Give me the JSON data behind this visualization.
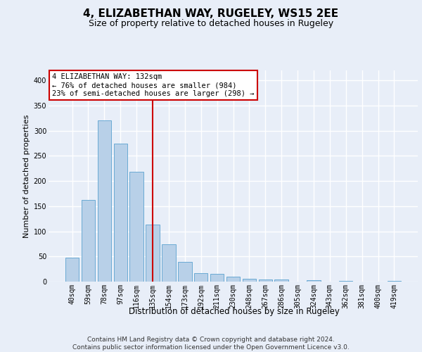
{
  "title": "4, ELIZABETHAN WAY, RUGELEY, WS15 2EE",
  "subtitle": "Size of property relative to detached houses in Rugeley",
  "xlabel": "Distribution of detached houses by size in Rugeley",
  "ylabel": "Number of detached properties",
  "categories": [
    "40sqm",
    "59sqm",
    "78sqm",
    "97sqm",
    "116sqm",
    "135sqm",
    "154sqm",
    "173sqm",
    "192sqm",
    "211sqm",
    "230sqm",
    "248sqm",
    "267sqm",
    "286sqm",
    "305sqm",
    "324sqm",
    "343sqm",
    "362sqm",
    "381sqm",
    "400sqm",
    "419sqm"
  ],
  "values": [
    48,
    163,
    320,
    275,
    218,
    113,
    74,
    39,
    17,
    16,
    10,
    5,
    4,
    4,
    0,
    3,
    0,
    2,
    0,
    0,
    2
  ],
  "bar_color": "#b8d0e8",
  "bar_edge_color": "#6aaad4",
  "red_line_color": "#cc0000",
  "red_line_x": 5,
  "ylim": [
    0,
    420
  ],
  "yticks": [
    0,
    50,
    100,
    150,
    200,
    250,
    300,
    350,
    400
  ],
  "annotation_line1": "4 ELIZABETHAN WAY: 132sqm",
  "annotation_line2": "← 76% of detached houses are smaller (984)",
  "annotation_line3": "23% of semi-detached houses are larger (298) →",
  "annotation_box_facecolor": "#ffffff",
  "annotation_box_edgecolor": "#cc0000",
  "bg_color": "#e8eef8",
  "grid_color": "#ffffff",
  "title_fontsize": 11,
  "subtitle_fontsize": 9,
  "xlabel_fontsize": 8.5,
  "ylabel_fontsize": 8,
  "tick_fontsize": 7,
  "ann_fontsize": 7.5,
  "footer_fontsize": 6.5,
  "footer_text": "Contains HM Land Registry data © Crown copyright and database right 2024.\nContains public sector information licensed under the Open Government Licence v3.0."
}
